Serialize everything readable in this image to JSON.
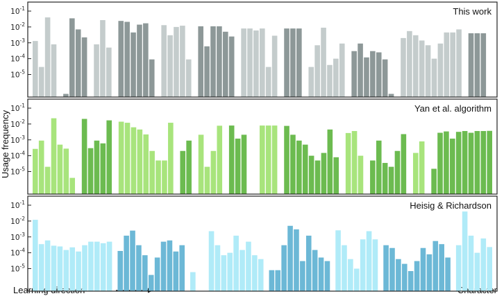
{
  "chart_data": {
    "type": "bar",
    "ylabel": "Usage frequency",
    "xlabel_left": "Learning direction",
    "xlabel_right": "Character",
    "yscale": "log",
    "ylim": [
      1e-06,
      0.2
    ],
    "yticks": [
      "10-1",
      "10-2",
      "10-3",
      "10-4",
      "10-5"
    ],
    "panels": [
      {
        "label": "This work",
        "colors": [
          "#c4cccc",
          "#8d9898"
        ],
        "groups": [
          [
            0.0013,
            3e-05,
            0.04,
            0.0008
          ],
          [
            6e-07,
            0.035,
            0.007,
            0.0022
          ],
          [
            0.0008,
            0.027,
            0.0005
          ],
          [
            0.024,
            0.021,
            0.0045,
            0.014,
            0.017,
            9e-05
          ],
          [
            0.013,
            0.003,
            0.01,
            0.012,
            9e-05
          ],
          [
            0.011,
            0.0006,
            0.011,
            0.011,
            0.005,
            0.0025
          ],
          [
            0.008,
            0.008,
            0.006,
            0.008,
            3e-05,
            0.0028
          ],
          [
            0.008,
            0.008,
            0.008
          ],
          [
            3e-05,
            0.0007,
            0.009,
            4e-05,
            0.0001,
            0.0009
          ],
          [
            0.0003,
            0.0009,
            0.00012,
            0.0003,
            0.00025,
            9e-05,
            6e-07
          ],
          [
            0.002,
            0.0055,
            0.003,
            0.0014,
            0.0007,
            0.0001,
            0.0009,
            0.0045,
            0.0045,
            0.007
          ],
          [
            0.004,
            0.004,
            0.004,
            2e-07
          ]
        ]
      },
      {
        "label": "Yan et al. algorithm",
        "colors": [
          "#a8e47c",
          "#6cbb50"
        ],
        "groups": [
          [
            0.00027,
            0.0009,
            2e-05,
            0.023,
            0.0005,
            0.00028,
            4e-06
          ],
          [
            0.021,
            0.0003,
            0.0009,
            0.0006,
            0.017
          ],
          [
            0.014,
            0.012,
            0.0062,
            0.0045,
            0.0022,
            0.0002,
            5e-05,
            5e-05,
            0.012
          ],
          [
            0.0002,
            0.0009
          ],
          [
            0.0021,
            2e-05,
            0.0002,
            0.0078
          ],
          [
            0.008,
            0.0012,
            0.0021
          ],
          [
            2e-07,
            0.008,
            0.008,
            0.008
          ],
          [
            0.0076,
            0.0021,
            0.0009,
            0.0005,
            0.0001,
            5e-05,
            0.00015,
            0.0045,
            8e-05
          ],
          [
            0.0027,
            0.0036,
            0.0001
          ],
          [
            5e-05,
            0.0009,
            3.5e-05,
            2e-05,
            0.0002,
            0.0023
          ],
          [
            0.00015,
            0.0008
          ],
          [
            1.5e-05,
            0.0028,
            0.0034,
            0.0012,
            0.0032,
            0.0036,
            0.0028,
            0.0036,
            0.0036,
            0.0037
          ]
        ]
      },
      {
        "label": "Heisig & Richardson",
        "colors": [
          "#b0ebf8",
          "#6cb8d6"
        ],
        "groups": [
          [
            0.012,
            0.00035,
            0.0006,
            0.00028,
            0.00025,
            0.00015,
            0.00022,
            0.00012,
            0.0003,
            0.0005,
            0.0005,
            0.0004,
            0.0005
          ],
          [
            0.00013,
            0.0012,
            0.0025,
            0.0003,
            7e-05,
            4e-06,
            5e-05,
            0.0005,
            0.0006,
            0.00012,
            0.0003
          ],
          [
            6e-06,
            3e-07,
            3e-07,
            0.0023,
            0.0003,
            7e-05,
            0.0001,
            0.0012,
            0.00015,
            0.0005,
            7e-05,
            4e-05
          ],
          [
            8e-06,
            8e-06,
            0.0003,
            0.005,
            0.003,
            3e-05,
            0.0012,
            0.00015,
            5e-05,
            3e-05
          ],
          [
            0.0026,
            0.0003,
            4e-05,
            1e-05,
            0.0007,
            0.0023,
            0.0007
          ],
          [
            0.0003,
            0.0002,
            4e-05,
            2e-05,
            7e-06,
            3e-05,
            0.0002,
            8e-05,
            0.00055,
            0.00035,
            5e-05
          ],
          [
            0.0003,
            0.04,
            0.0012,
            0.0001,
            0.0008,
            0.00023
          ]
        ]
      }
    ]
  }
}
